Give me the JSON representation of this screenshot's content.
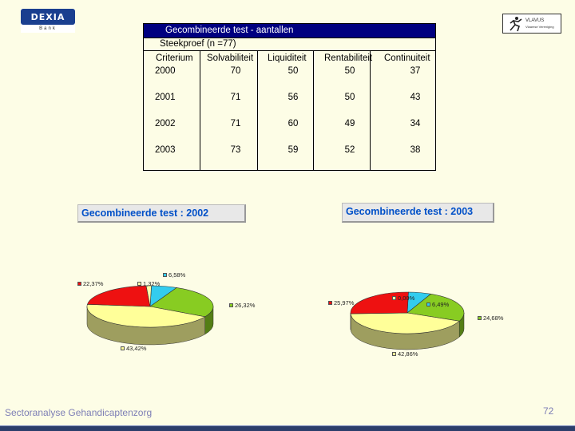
{
  "logos": {
    "left_name": "DEXIA",
    "left_sub": "Bank",
    "right_text": "VLAVUS",
    "right_sub": "Vlaamse Vereniging"
  },
  "table": {
    "title": "Gecombineerde test - aantallen",
    "subtitle": "Steekproef (n =77)",
    "headers": [
      "Criterium",
      "Solvabiliteit",
      "Liquiditeit",
      "Rentabiliteit",
      "Continuiteit"
    ],
    "rows": [
      [
        "2000",
        "70",
        "50",
        "50",
        "37"
      ],
      [
        "2001",
        "71",
        "56",
        "50",
        "43"
      ],
      [
        "2002",
        "71",
        "60",
        "49",
        "34"
      ],
      [
        "2003",
        "73",
        "59",
        "52",
        "38"
      ]
    ]
  },
  "chart_data": [
    {
      "type": "pie",
      "title": "Gecombineerde test  : 2002",
      "labels": [
        "6,58%",
        "26,32%",
        "43,42%",
        "22,37%",
        "1,32%"
      ],
      "values": [
        6.58,
        26.32,
        43.42,
        22.37,
        1.32
      ],
      "colors": [
        "#33ccee",
        "#88cc22",
        "#ffff99",
        "#ee1111",
        "#ffffaa"
      ]
    },
    {
      "type": "pie",
      "title": "Gecombineerde test  : 2003",
      "labels": [
        "6,49%",
        "24,68%",
        "42,86%",
        "25,97%",
        "0,00%"
      ],
      "values": [
        6.49,
        24.68,
        42.86,
        25.97,
        0.0
      ],
      "colors": [
        "#33ccee",
        "#88cc22",
        "#ffff99",
        "#ee1111",
        "#ffffaa"
      ]
    }
  ],
  "footer": {
    "left": "Sectoranalyse Gehandicaptenzorg",
    "page": "72"
  }
}
